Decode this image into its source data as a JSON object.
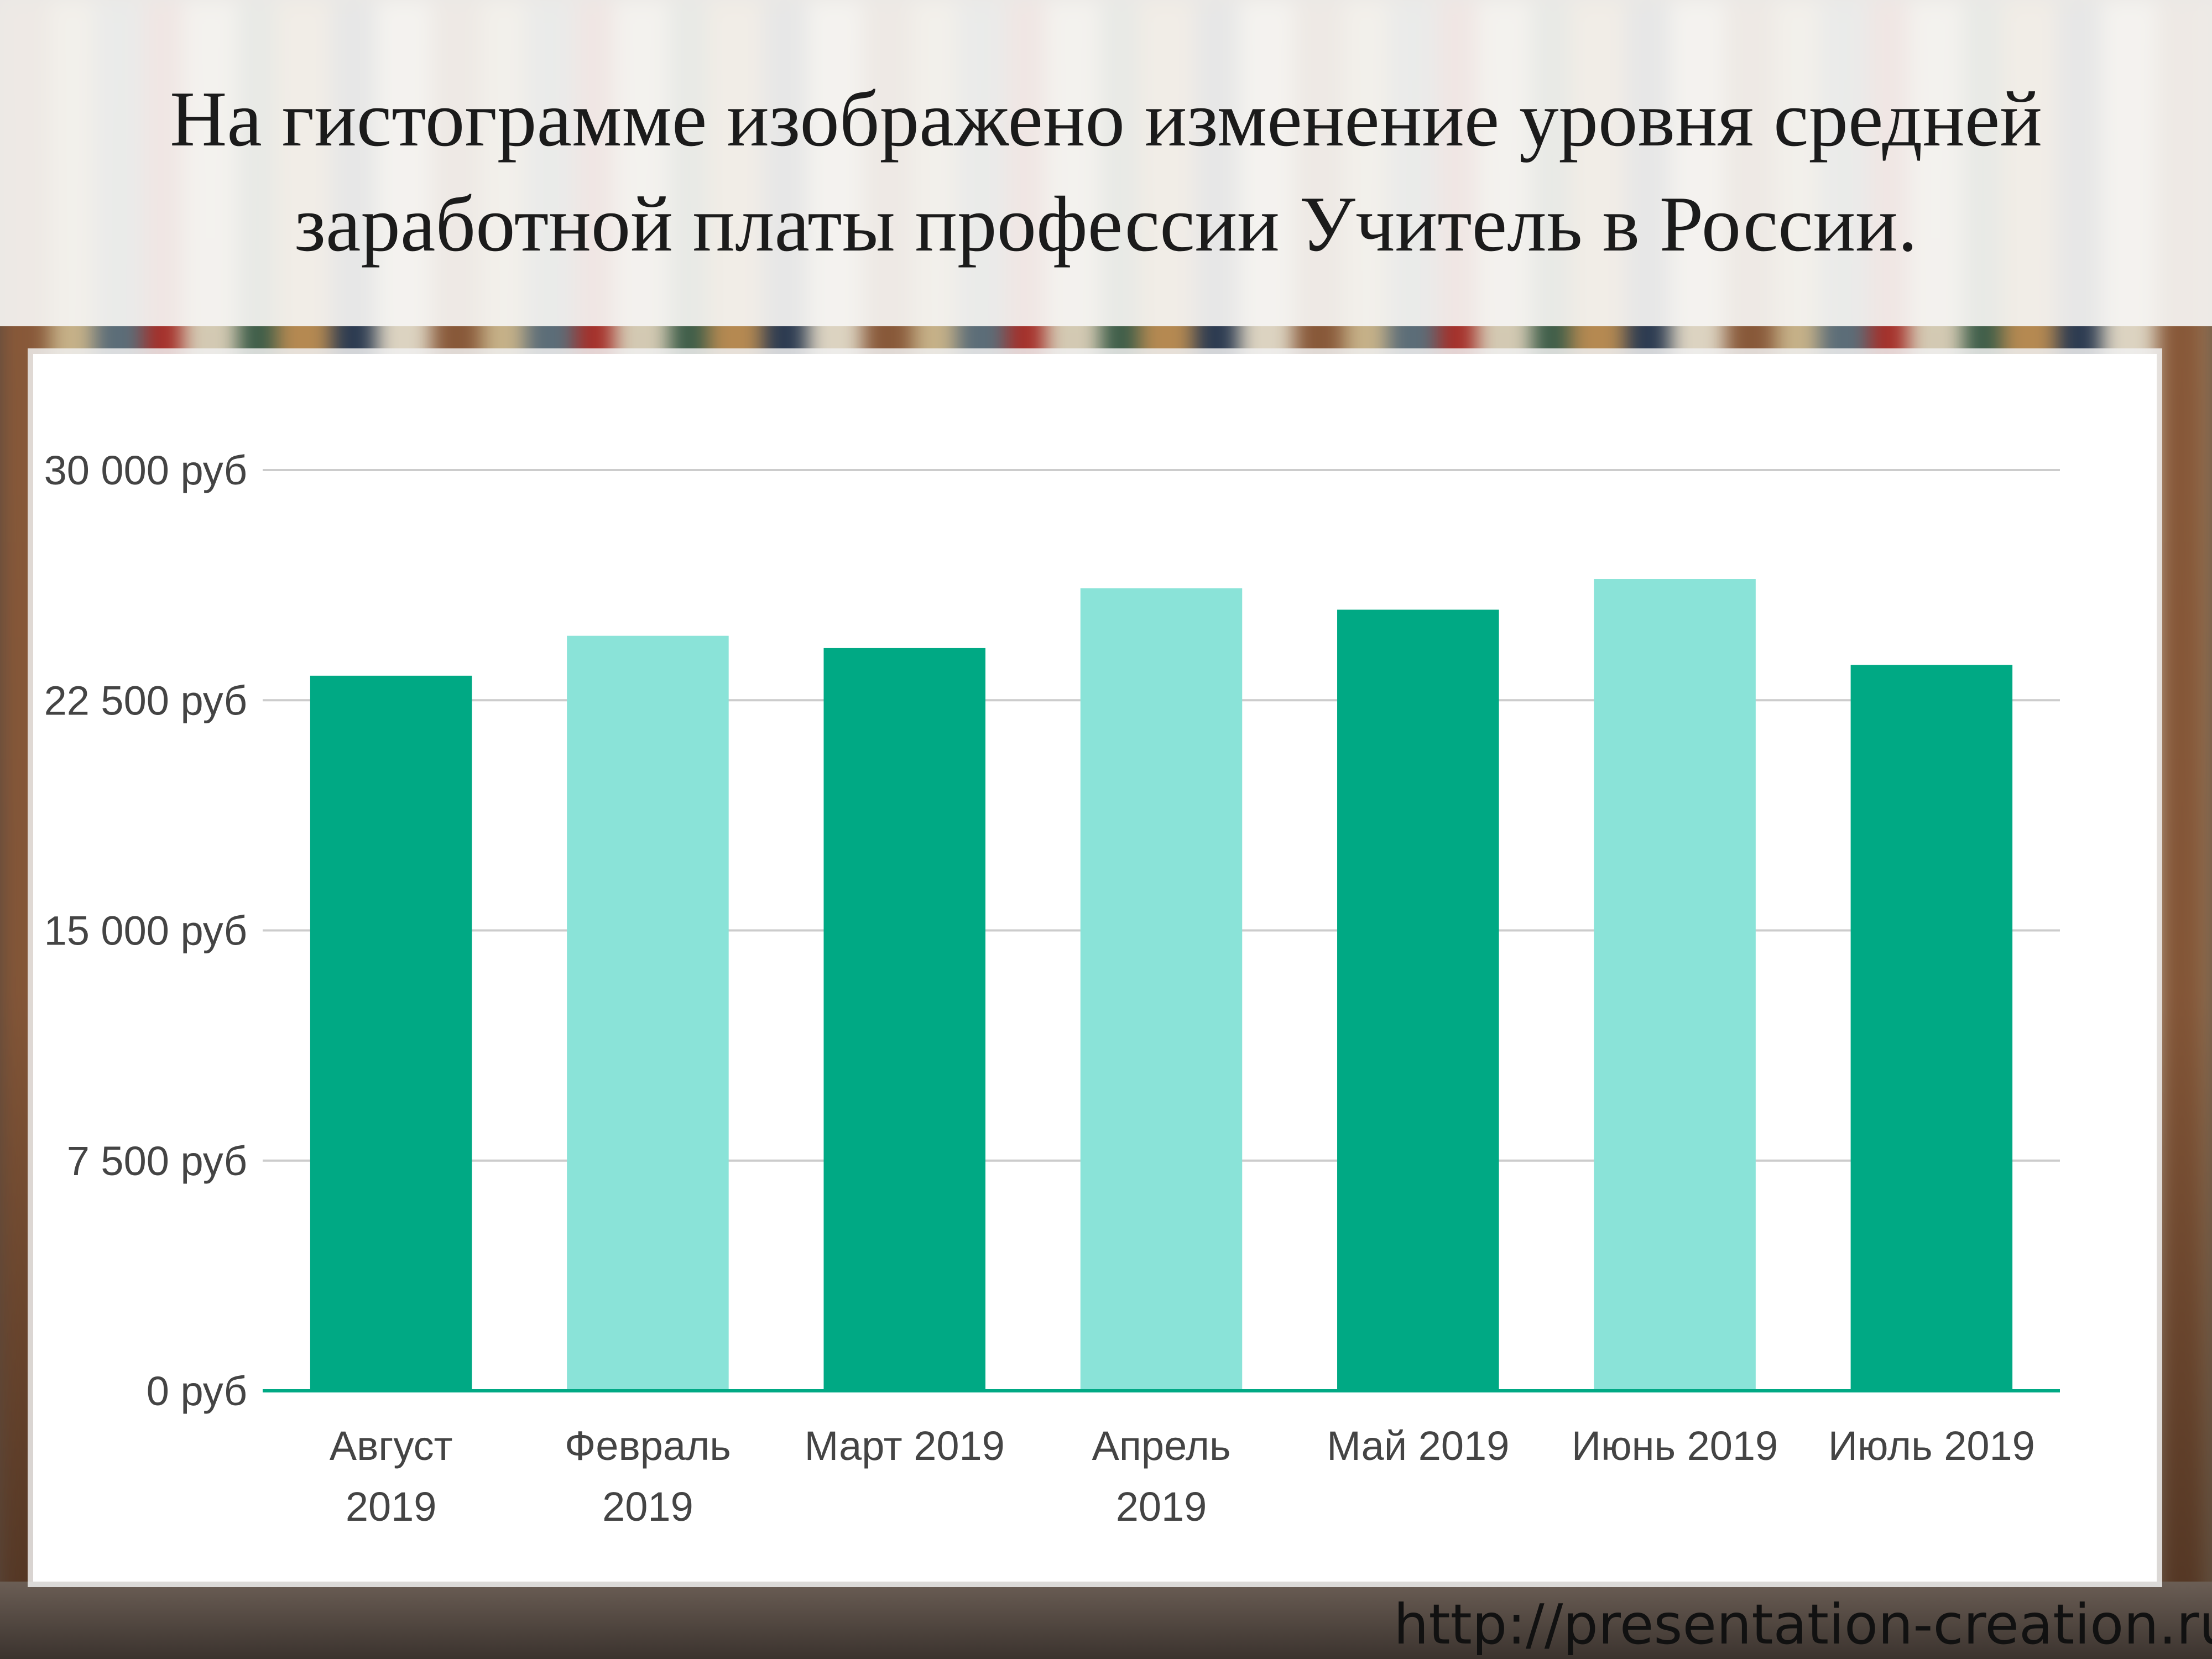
{
  "title": "На гистограмме изображено изменение уровня средней заработной платы профессии Учитель в России.",
  "footer_url": "http://presentation-creation.ru",
  "chart_data": {
    "type": "bar",
    "categories": [
      [
        "Август",
        "2019"
      ],
      [
        "Февраль",
        "2019"
      ],
      [
        "Март 2019"
      ],
      [
        "Апрель",
        "2019"
      ],
      [
        "Май 2019"
      ],
      [
        "Июнь 2019"
      ],
      [
        "Июль 2019"
      ]
    ],
    "values": [
      23300,
      24600,
      24200,
      26150,
      25450,
      26450,
      23650
    ],
    "bar_colors": [
      "#00a984",
      "#8ae3d8",
      "#00a984",
      "#8ae3d8",
      "#00a984",
      "#8ae3d8",
      "#00a984"
    ],
    "ylim": [
      0,
      30000
    ],
    "yticks": [
      0,
      7500,
      15000,
      22500,
      30000
    ],
    "ytick_labels": [
      "0 руб",
      "7 500 руб",
      "15 000 руб",
      "22 500 руб",
      "30 000 руб"
    ],
    "grid": true,
    "axis_color": "#00a984",
    "grid_color": "#cccccc"
  }
}
